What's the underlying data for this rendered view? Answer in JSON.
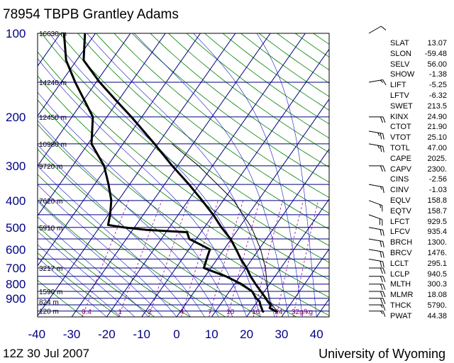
{
  "title": "78954 TBPB Grantley Adams",
  "footer": {
    "date": "12Z 30 Jul 2007",
    "source": "University of Wyoming"
  },
  "chart_data": {
    "type": "line",
    "diagram": "Skew-T log-P",
    "pressure_ticks": [
      "100",
      "200",
      "300",
      "400",
      "500",
      "600",
      "700",
      "800",
      "900"
    ],
    "temperature_ticks": [
      "-40",
      "-30",
      "-20",
      "-10",
      "0",
      "10",
      "20",
      "30",
      "40"
    ],
    "height_labels": [
      {
        "p": 100,
        "label": "16630 m"
      },
      {
        "p": 150,
        "label": "14240 m"
      },
      {
        "p": 200,
        "label": "12450 m"
      },
      {
        "p": 250,
        "label": "10980 m"
      },
      {
        "p": 300,
        "label": "9720 m"
      },
      {
        "p": 400,
        "label": "7620 m"
      },
      {
        "p": 500,
        "label": "5910 m"
      },
      {
        "p": 700,
        "label": "3217 m"
      },
      {
        "p": 850,
        "label": "1590 m"
      },
      {
        "p": 925,
        "label": "824 m"
      },
      {
        "p": 1000,
        "label": "120 m"
      }
    ],
    "mixing_ratio_labels": [
      "0.4",
      "1",
      "2",
      "4",
      "7",
      "10",
      "16",
      "24",
      "32g/kg"
    ],
    "series": [
      {
        "role": "temperature",
        "points": [
          [
            1010,
            28
          ],
          [
            1000,
            27
          ],
          [
            975,
            24.8
          ],
          [
            950,
            24.5
          ],
          [
            925,
            23
          ],
          [
            900,
            21.8
          ],
          [
            850,
            19
          ],
          [
            800,
            16
          ],
          [
            750,
            13
          ],
          [
            700,
            10.2
          ],
          [
            650,
            6.8
          ],
          [
            600,
            3.5
          ],
          [
            550,
            -0.2
          ],
          [
            500,
            -5.1
          ],
          [
            450,
            -10
          ],
          [
            400,
            -16
          ],
          [
            350,
            -23
          ],
          [
            300,
            -31.5
          ],
          [
            250,
            -41
          ],
          [
            200,
            -53
          ],
          [
            175,
            -60.5
          ],
          [
            150,
            -69
          ],
          [
            125,
            -78
          ],
          [
            100,
            -83
          ]
        ]
      },
      {
        "role": "dewpoint",
        "points": [
          [
            1010,
            24
          ],
          [
            1000,
            23.4
          ],
          [
            975,
            22.5
          ],
          [
            950,
            21.5
          ],
          [
            925,
            20.7
          ],
          [
            900,
            19
          ],
          [
            850,
            16.5
          ],
          [
            800,
            12
          ],
          [
            750,
            6
          ],
          [
            700,
            -2
          ],
          [
            650,
            -3
          ],
          [
            600,
            -4
          ],
          [
            550,
            -12
          ],
          [
            520,
            -14
          ],
          [
            510,
            -26
          ],
          [
            500,
            -33
          ],
          [
            490,
            -38
          ],
          [
            450,
            -39.5
          ],
          [
            400,
            -42
          ],
          [
            350,
            -46
          ],
          [
            300,
            -51
          ],
          [
            250,
            -59
          ],
          [
            200,
            -64
          ],
          [
            150,
            -76
          ],
          [
            125,
            -83
          ],
          [
            100,
            -89
          ]
        ]
      }
    ],
    "parcel_points": [
      [
        1000,
        27.5
      ],
      [
        925,
        23.5
      ],
      [
        850,
        21
      ],
      [
        800,
        19.3
      ],
      [
        700,
        15.6
      ],
      [
        600,
        10.5
      ],
      [
        500,
        3.5
      ],
      [
        400,
        -7
      ],
      [
        300,
        -24
      ],
      [
        250,
        -36
      ]
    ]
  },
  "wind_profile": {
    "description": "wind barbs",
    "levels": [
      {
        "p": 100,
        "dir": 60,
        "spd": 10
      },
      {
        "p": 150,
        "dir": 80,
        "spd": 15
      },
      {
        "p": 200,
        "dir": 90,
        "spd": 20
      },
      {
        "p": 225,
        "dir": 100,
        "spd": 25
      },
      {
        "p": 250,
        "dir": 100,
        "spd": 25
      },
      {
        "p": 300,
        "dir": 90,
        "spd": 20
      },
      {
        "p": 350,
        "dir": 100,
        "spd": 15
      },
      {
        "p": 400,
        "dir": 110,
        "spd": 15
      },
      {
        "p": 450,
        "dir": 110,
        "spd": 20
      },
      {
        "p": 500,
        "dir": 100,
        "spd": 20
      },
      {
        "p": 550,
        "dir": 100,
        "spd": 20
      },
      {
        "p": 600,
        "dir": 100,
        "spd": 20
      },
      {
        "p": 650,
        "dir": 100,
        "spd": 20
      },
      {
        "p": 700,
        "dir": 90,
        "spd": 20
      },
      {
        "p": 750,
        "dir": 90,
        "spd": 20
      },
      {
        "p": 800,
        "dir": 90,
        "spd": 20
      },
      {
        "p": 850,
        "dir": 90,
        "spd": 20
      },
      {
        "p": 900,
        "dir": 90,
        "spd": 20
      },
      {
        "p": 950,
        "dir": 90,
        "spd": 15
      },
      {
        "p": 1000,
        "dir": 90,
        "spd": 15
      }
    ]
  },
  "indices": [
    {
      "key": "SLAT",
      "value": "13.07"
    },
    {
      "key": "SLON",
      "value": "-59.48"
    },
    {
      "key": "SELV",
      "value": "56.00"
    },
    {
      "key": "SHOW",
      "value": "-1.38"
    },
    {
      "key": "LIFT",
      "value": "-5.25"
    },
    {
      "key": "LFTV",
      "value": "-6.32"
    },
    {
      "key": "SWET",
      "value": "213.5"
    },
    {
      "key": "KINX",
      "value": "24.90"
    },
    {
      "key": "CTOT",
      "value": "21.90"
    },
    {
      "key": "VTOT",
      "value": "25.10"
    },
    {
      "key": "TOTL",
      "value": "47.00"
    },
    {
      "key": "CAPE",
      "value": "2025."
    },
    {
      "key": "CAPV",
      "value": "2300."
    },
    {
      "key": "CINS",
      "value": "-2.56"
    },
    {
      "key": "CINV",
      "value": "-1.03"
    },
    {
      "key": "EQLV",
      "value": "158.8"
    },
    {
      "key": "EQTV",
      "value": "158.7"
    },
    {
      "key": "LFCT",
      "value": "929.5"
    },
    {
      "key": "LFCV",
      "value": "935.4"
    },
    {
      "key": "BRCH",
      "value": "1300."
    },
    {
      "key": "BRCV",
      "value": "1476."
    },
    {
      "key": "LCLT",
      "value": "295.1"
    },
    {
      "key": "LCLP",
      "value": "940.5"
    },
    {
      "key": "MLTH",
      "value": "300.3"
    },
    {
      "key": "MLMR",
      "value": "18.08"
    },
    {
      "key": "THCK",
      "value": "5790."
    },
    {
      "key": "PWAT",
      "value": "44.38"
    }
  ],
  "colors": {
    "isobar": "#000080",
    "isotherm": "#000080",
    "dry_adiabat": "#008000",
    "moist_adiabat": "#0000c0",
    "mixing_ratio": "#a000a0",
    "sounding": "#000000"
  }
}
